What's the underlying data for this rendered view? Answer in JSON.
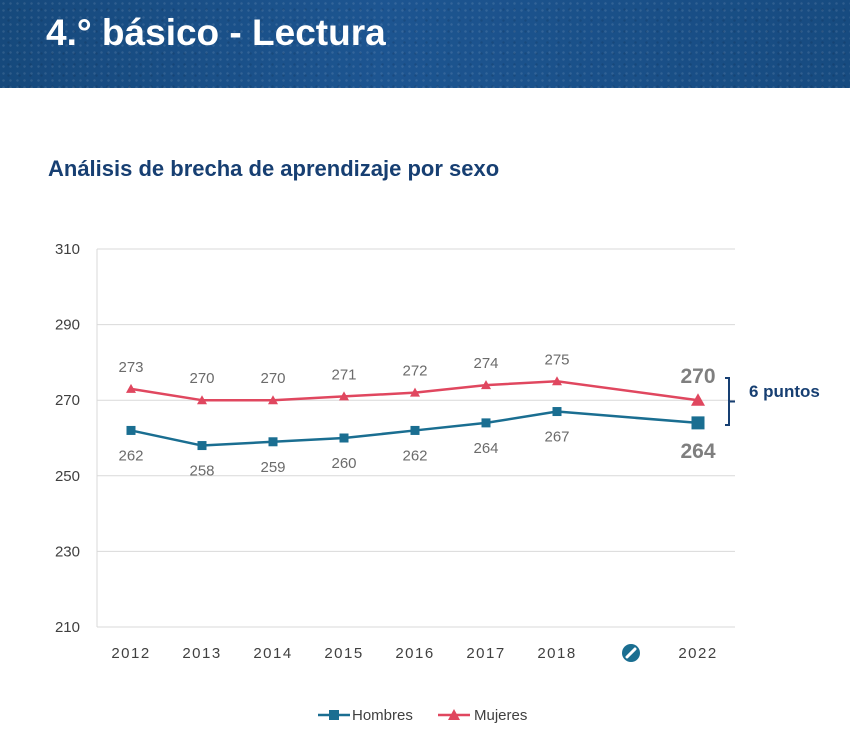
{
  "header": {
    "title": "4.° básico - Lectura"
  },
  "chart_data": {
    "type": "line",
    "title": "Análisis de brecha de aprendizaje por sexo",
    "categories": [
      "2012",
      "2013",
      "2014",
      "2015",
      "2016",
      "2017",
      "2018",
      "2022"
    ],
    "ylim": [
      210,
      310
    ],
    "yticks": [
      210,
      230,
      250,
      270,
      290,
      310
    ],
    "grid": true,
    "legend_position": "bottom",
    "series": [
      {
        "name": "Hombres",
        "color": "#1a6e91",
        "marker": "square",
        "values": [
          262,
          258,
          259,
          260,
          262,
          264,
          267,
          264
        ]
      },
      {
        "name": "Mujeres",
        "color": "#e0475f",
        "marker": "triangle",
        "values": [
          273,
          270,
          270,
          271,
          272,
          274,
          275,
          270
        ]
      }
    ],
    "axis_break_icon": "no-data-circle-icon",
    "gap_annotation": "6 puntos"
  }
}
